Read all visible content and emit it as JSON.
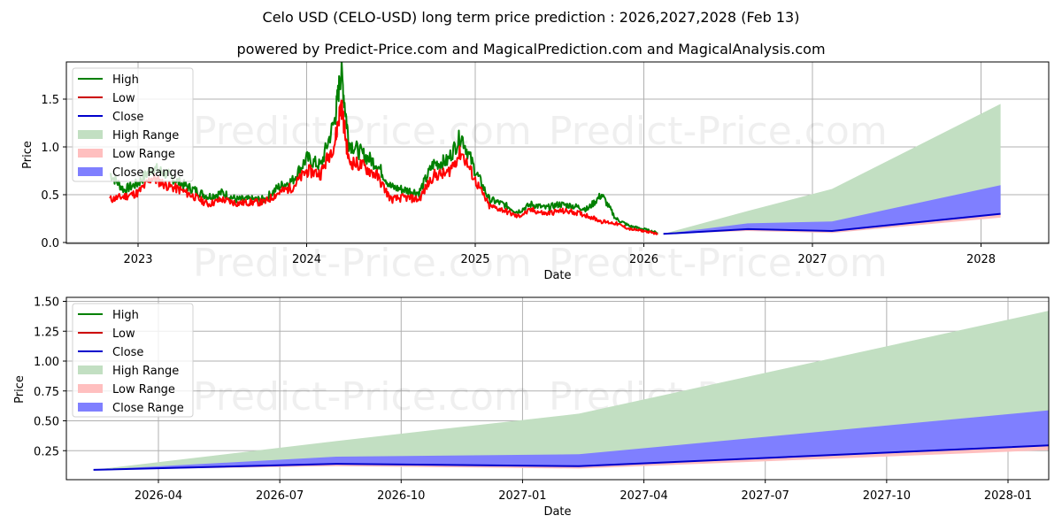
{
  "header": {
    "title": "Celo USD (CELO-USD) long term price prediction : 2026,2027,2028 (Feb 13)",
    "subtitle": "powered by Predict-Price.com and MagicalPrediction.com and MagicalAnalysis.com"
  },
  "watermark": "Predict-Price.com",
  "legend": {
    "high": "High",
    "low": "Low",
    "close": "Close",
    "high_range": "High Range",
    "low_range": "Low Range",
    "close_range": "Close Range"
  },
  "colors": {
    "high": "#008000",
    "low": "#ff0000",
    "close": "#0000cc",
    "high_range": "#c2dfc2",
    "low_range": "#ffbfbf",
    "close_range": "#7f7fff"
  },
  "top_chart": {
    "xlabel": "Date",
    "ylabel": "Price",
    "xticks": [
      "2023",
      "2024",
      "2025",
      "2026",
      "2027",
      "2028"
    ],
    "yticks": [
      "0.0",
      "0.5",
      "1.0",
      "1.5"
    ]
  },
  "bottom_chart": {
    "xlabel": "Date",
    "ylabel": "Price",
    "xticks": [
      "2026-04",
      "2026-07",
      "2026-10",
      "2027-01",
      "2027-04",
      "2027-07",
      "2027-10",
      "2028-01"
    ],
    "yticks": [
      "0.25",
      "0.50",
      "0.75",
      "1.00",
      "1.25",
      "1.50"
    ]
  },
  "chart_data": [
    {
      "type": "line",
      "title": "Celo USD (CELO-USD) long term price prediction : 2026,2027,2028 (Feb 13)",
      "xlabel": "Date",
      "ylabel": "Price",
      "ylim": [
        0,
        1.85
      ],
      "xlim": [
        "2022-07",
        "2028-05"
      ],
      "grid": true,
      "legend_position": "upper left",
      "history": {
        "x": [
          "2022-11",
          "2022-12",
          "2023-01",
          "2023-02",
          "2023-03",
          "2023-04",
          "2023-05",
          "2023-06",
          "2023-07",
          "2023-08",
          "2023-09",
          "2023-10",
          "2023-11",
          "2023-12",
          "2024-01",
          "2024-02",
          "2024-03",
          "2024-03-15",
          "2024-04",
          "2024-05",
          "2024-06",
          "2024-07",
          "2024-08",
          "2024-09",
          "2024-10",
          "2024-11",
          "2024-12",
          "2025-01",
          "2025-02",
          "2025-03",
          "2025-04",
          "2025-05",
          "2025-06",
          "2025-07",
          "2025-08",
          "2025-09",
          "2025-10",
          "2025-11",
          "2025-12",
          "2026-01",
          "2026-02"
        ],
        "series": [
          {
            "name": "High",
            "values": [
              0.72,
              0.55,
              0.62,
              0.78,
              0.72,
              0.62,
              0.55,
              0.48,
              0.52,
              0.45,
              0.45,
              0.45,
              0.58,
              0.65,
              0.88,
              0.8,
              1.28,
              1.8,
              1.05,
              0.92,
              0.82,
              0.58,
              0.55,
              0.52,
              0.82,
              0.85,
              1.12,
              0.75,
              0.45,
              0.4,
              0.32,
              0.4,
              0.36,
              0.4,
              0.38,
              0.35,
              0.5,
              0.25,
              0.17,
              0.14,
              0.1
            ]
          },
          {
            "name": "Low",
            "values": [
              0.45,
              0.48,
              0.52,
              0.68,
              0.6,
              0.55,
              0.48,
              0.4,
              0.45,
              0.41,
              0.42,
              0.42,
              0.52,
              0.58,
              0.75,
              0.72,
              1.05,
              1.45,
              0.85,
              0.8,
              0.7,
              0.45,
              0.47,
              0.45,
              0.7,
              0.72,
              0.95,
              0.65,
              0.38,
              0.34,
              0.27,
              0.34,
              0.3,
              0.33,
              0.32,
              0.28,
              0.22,
              0.2,
              0.14,
              0.12,
              0.09
            ]
          }
        ]
      }
    },
    {
      "type": "area",
      "title": "Forecast",
      "xlabel": "Date",
      "ylabel": "Price",
      "ylim": [
        0,
        1.5
      ],
      "xlim": [
        "2026-01",
        "2028-04"
      ],
      "grid": true,
      "legend_position": "upper left",
      "x": [
        "2026-02-13",
        "2026-08-13",
        "2027-02-13",
        "2028-02-13"
      ],
      "series": [
        {
          "name": "Close",
          "values": [
            0.09,
            0.14,
            0.12,
            0.3
          ]
        },
        {
          "name": "High Range",
          "values": [
            0.09,
            0.33,
            0.56,
            1.45
          ]
        },
        {
          "name": "Close Range (upper)",
          "values": [
            0.09,
            0.2,
            0.22,
            0.6
          ]
        },
        {
          "name": "Low Range (lower)",
          "values": [
            0.09,
            0.12,
            0.1,
            0.26
          ]
        }
      ]
    }
  ]
}
